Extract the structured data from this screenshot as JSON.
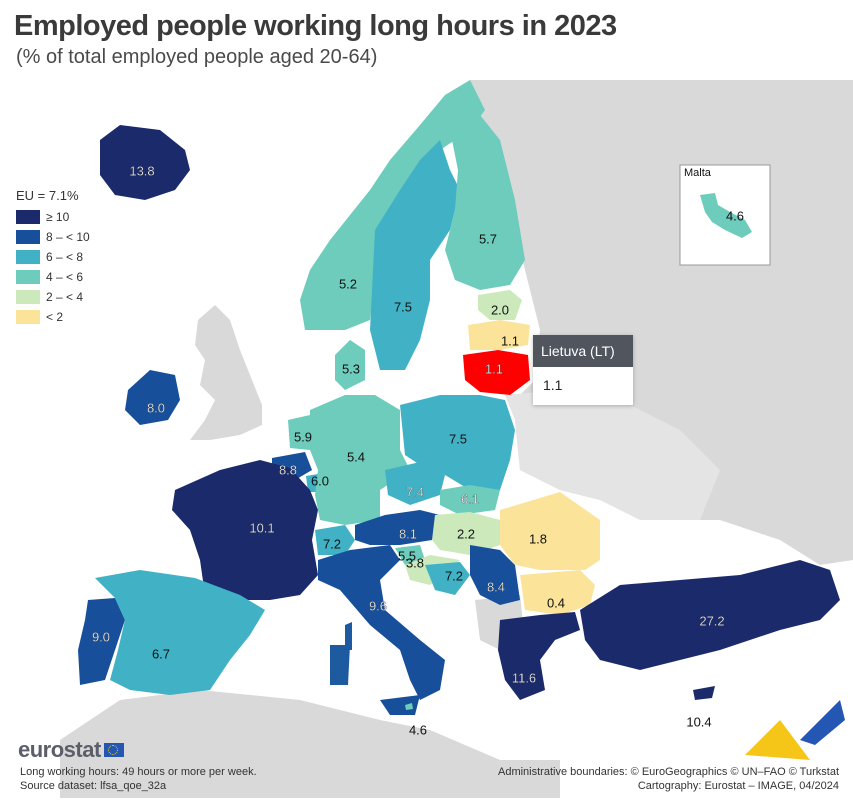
{
  "header": {
    "title": "Employed people working long hours in 2023",
    "subtitle": "(% of total employed people aged 20-64)"
  },
  "legend": {
    "title": "EU = 7.1%",
    "items": [
      {
        "label": "≥ 10",
        "color": "#1b2a6b"
      },
      {
        "label": "8 – < 10",
        "color": "#174f9a"
      },
      {
        "label": "6 – < 8",
        "color": "#41b2c6"
      },
      {
        "label": "4 – < 6",
        "color": "#6dccbb"
      },
      {
        "label": "2 – < 4",
        "color": "#cbe9bb"
      },
      {
        "label": "< 2",
        "color": "#fbe49a"
      }
    ]
  },
  "colors": {
    "non_eu_land": "#d9d9d9",
    "sea": "#ffffff",
    "highlight": "#ff0000"
  },
  "countries": [
    {
      "code": "IS",
      "value": "13.8"
    },
    {
      "code": "NO",
      "value": "5.2"
    },
    {
      "code": "SE",
      "value": "7.5"
    },
    {
      "code": "FI",
      "value": "5.7"
    },
    {
      "code": "EE",
      "value": "2.0"
    },
    {
      "code": "LV",
      "value": "1.1"
    },
    {
      "code": "LT",
      "value": "1.1"
    },
    {
      "code": "DK",
      "value": "5.3"
    },
    {
      "code": "IE",
      "value": "8.0"
    },
    {
      "code": "NL",
      "value": "5.9"
    },
    {
      "code": "BE",
      "value": "8.8"
    },
    {
      "code": "LU",
      "value": "6.0"
    },
    {
      "code": "DE",
      "value": "5.4"
    },
    {
      "code": "PL",
      "value": "7.5"
    },
    {
      "code": "CZ",
      "value": "7.4"
    },
    {
      "code": "SK",
      "value": "6.1"
    },
    {
      "code": "FR",
      "value": "10.1"
    },
    {
      "code": "CH",
      "value": "7.2"
    },
    {
      "code": "AT",
      "value": "8.1"
    },
    {
      "code": "SI",
      "value": "5.5"
    },
    {
      "code": "HU",
      "value": "2.2"
    },
    {
      "code": "HR",
      "value": "3.8"
    },
    {
      "code": "BA",
      "value": "7.2"
    },
    {
      "code": "RS",
      "value": "8.4"
    },
    {
      "code": "RO",
      "value": "1.8"
    },
    {
      "code": "BG",
      "value": "0.4"
    },
    {
      "code": "IT",
      "value": "9.6"
    },
    {
      "code": "PT",
      "value": "9.0"
    },
    {
      "code": "ES",
      "value": "6.7"
    },
    {
      "code": "TR",
      "value": "27.2"
    },
    {
      "code": "EL",
      "value": "11.6"
    },
    {
      "code": "CY",
      "value": "10.4"
    },
    {
      "code": "MT-main",
      "value": "4.6"
    },
    {
      "code": "MT-inset",
      "value": "4.6"
    }
  ],
  "inset": {
    "label": "Malta"
  },
  "tooltip": {
    "title": "Lietuva (LT)",
    "value": "1.1"
  },
  "branding": {
    "logo": "eurostat",
    "flag_icon": "eu-flag-icon"
  },
  "footer": {
    "note1": "Long working hours: 49 hours or more per week.",
    "note2": "Source dataset: lfsa_qoe_32a",
    "credit1": "Administrative boundaries: © EuroGeographics © UN–FAO © Turkstat",
    "credit2": "Cartography: Eurostat – IMAGE, 04/2024"
  }
}
